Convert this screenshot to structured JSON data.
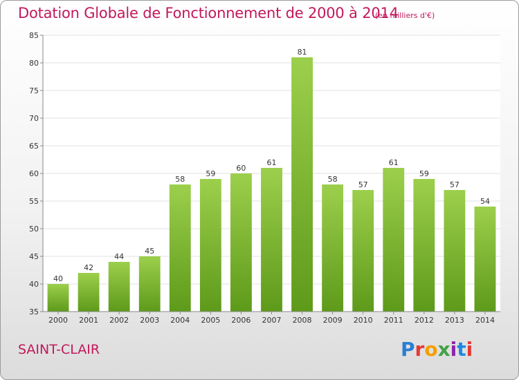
{
  "header": {
    "title": "Dotation Globale de Fonctionnement de 2000 à 2014",
    "units": "(en milliers d'€)"
  },
  "footer": {
    "commune": "SAINT-CLAIR",
    "logo_text": "Proxiti",
    "logo_colors": [
      "#2a7fd4",
      "#e53935",
      "#f59f00",
      "#43a047",
      "#8e24aa",
      "#1e88e5",
      "#e53935"
    ]
  },
  "chart_data": {
    "type": "bar",
    "title": "Dotation Globale de Fonctionnement de 2000 à 2014",
    "xlabel": "",
    "ylabel": "",
    "categories": [
      "2000",
      "2001",
      "2002",
      "2003",
      "2004",
      "2005",
      "2006",
      "2007",
      "2008",
      "2009",
      "2010",
      "2011",
      "2012",
      "2013",
      "2014"
    ],
    "values": [
      40,
      42,
      44,
      45,
      58,
      59,
      60,
      61,
      81,
      58,
      57,
      61,
      59,
      57,
      54
    ],
    "ylim": [
      35,
      85
    ],
    "yticks": [
      35,
      40,
      45,
      50,
      55,
      60,
      65,
      70,
      75,
      80,
      85
    ],
    "grid": true,
    "bar_color_top": "#9ccf4c",
    "bar_color_bottom": "#5e9a1a",
    "legend": "none"
  }
}
